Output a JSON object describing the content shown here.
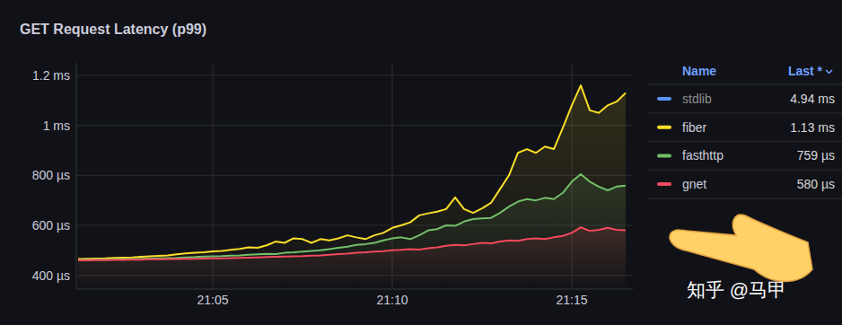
{
  "chart_data": {
    "type": "line",
    "title": "GET Request Latency (p99)",
    "watermark": "知乎 @马甲",
    "legend_columns": [
      "Name",
      "Last *"
    ],
    "legend": "right",
    "grid": true,
    "xlim": [
      1.2,
      16.7
    ],
    "xticks": [
      {
        "value": 5,
        "label": "21:05"
      },
      {
        "value": 10,
        "label": "21:10"
      },
      {
        "value": 15,
        "label": "21:15"
      }
    ],
    "ylim": [
      345,
      1250
    ],
    "yticks": [
      {
        "value": 400,
        "label": "400 µs"
      },
      {
        "value": 600,
        "label": "600 µs"
      },
      {
        "value": 800,
        "label": "800 µs"
      },
      {
        "value": 1000,
        "label": "1 ms"
      },
      {
        "value": 1200,
        "label": "1.2 ms"
      }
    ],
    "x": [
      1.25,
      1.5,
      1.75,
      2,
      2.25,
      2.5,
      2.75,
      3,
      3.25,
      3.5,
      3.75,
      4,
      4.25,
      4.5,
      4.75,
      5,
      5.25,
      5.5,
      5.75,
      6,
      6.25,
      6.5,
      6.75,
      7,
      7.25,
      7.5,
      7.75,
      8,
      8.25,
      8.5,
      8.75,
      9,
      9.25,
      9.5,
      9.75,
      10,
      10.25,
      10.5,
      10.75,
      11,
      11.25,
      11.5,
      11.75,
      12,
      12.25,
      12.5,
      12.75,
      13,
      13.25,
      13.5,
      13.75,
      14,
      14.25,
      14.5,
      14.75,
      15,
      15.25,
      15.5,
      15.75,
      16,
      16.25,
      16.5
    ],
    "series": [
      {
        "name": "stdlib",
        "color": "#5794f2",
        "last": {
          "value": 4940,
          "label": "4.94 ms"
        },
        "values": [
          null,
          null,
          null,
          null,
          null,
          null,
          null,
          null,
          null,
          null,
          null,
          null,
          null,
          null,
          null,
          null,
          null,
          null,
          null,
          null,
          null,
          null,
          null,
          null,
          null,
          null,
          null,
          null,
          null,
          null,
          null,
          null,
          null,
          null,
          null,
          null,
          null,
          null,
          null,
          null,
          null,
          null,
          null,
          null,
          null,
          null,
          null,
          null,
          null,
          null,
          null,
          null,
          null,
          null,
          null,
          null,
          null,
          null,
          null,
          null,
          null,
          null
        ]
      },
      {
        "name": "fiber",
        "color": "#fade2a",
        "last": {
          "value": 1130,
          "label": "1.13 ms"
        },
        "values": [
          465,
          466,
          467,
          468,
          470,
          471,
          472,
          474,
          476,
          478,
          480,
          484,
          488,
          490,
          492,
          496,
          498,
          502,
          506,
          512,
          510,
          520,
          535,
          530,
          548,
          545,
          530,
          545,
          540,
          548,
          560,
          552,
          545,
          560,
          570,
          590,
          600,
          612,
          640,
          648,
          655,
          665,
          712,
          665,
          650,
          668,
          690,
          745,
          800,
          890,
          905,
          890,
          915,
          905,
          990,
          1080,
          1160,
          1060,
          1050,
          1080,
          1095,
          1130
        ]
      },
      {
        "name": "fasthttp",
        "color": "#73bf69",
        "last": {
          "value": 759,
          "label": "759 µs"
        },
        "values": [
          462,
          462,
          463,
          463,
          464,
          464,
          465,
          466,
          467,
          468,
          469,
          470,
          472,
          473,
          475,
          476,
          477,
          479,
          480,
          482,
          484,
          486,
          485,
          490,
          492,
          495,
          498,
          500,
          505,
          510,
          515,
          522,
          525,
          530,
          540,
          548,
          552,
          545,
          560,
          580,
          585,
          600,
          598,
          615,
          625,
          628,
          630,
          650,
          675,
          695,
          705,
          700,
          710,
          705,
          730,
          775,
          805,
          775,
          755,
          740,
          755,
          759
        ]
      },
      {
        "name": "gnet",
        "color": "#f2495c",
        "last": {
          "value": 580,
          "label": "580 µs"
        },
        "values": [
          460,
          460,
          461,
          461,
          462,
          462,
          463,
          463,
          464,
          464,
          465,
          465,
          466,
          466,
          467,
          468,
          468,
          469,
          470,
          471,
          472,
          473,
          474,
          475,
          476,
          477,
          479,
          480,
          482,
          485,
          487,
          490,
          492,
          495,
          497,
          500,
          502,
          505,
          503,
          508,
          512,
          518,
          522,
          520,
          525,
          530,
          528,
          535,
          540,
          538,
          545,
          548,
          545,
          552,
          558,
          570,
          592,
          578,
          582,
          590,
          582,
          580
        ]
      }
    ]
  }
}
